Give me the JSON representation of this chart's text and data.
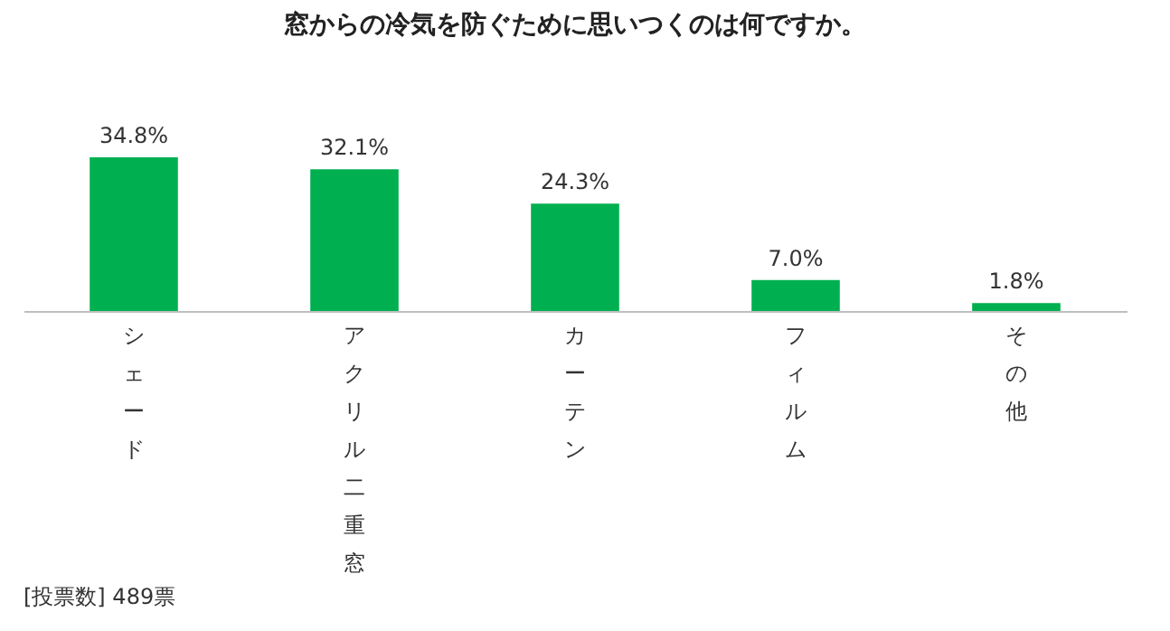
{
  "chart_data": {
    "type": "bar",
    "title": "窓からの冷気を防ぐために思いつくのは何ですか。",
    "categories": [
      "シェード",
      "アクリル二重窓",
      "カーテン",
      "フィルム",
      "その他"
    ],
    "values": [
      34.8,
      32.1,
      24.3,
      7.0,
      1.8
    ],
    "value_labels": [
      "34.8%",
      "32.1%",
      "24.3%",
      "7.0%",
      "1.8%"
    ],
    "color": "#00b050",
    "annotations": [
      "[投票数] 489票"
    ]
  }
}
